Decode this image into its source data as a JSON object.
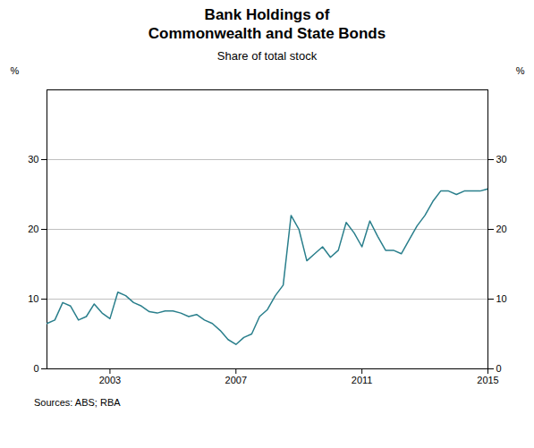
{
  "chart_data": {
    "type": "line",
    "title": "Bank Holdings of\nCommonwealth and State Bonds",
    "subtitle": "Share of total stock",
    "ylabel": "%",
    "y2label": "%",
    "source": "Sources:  ABS; RBA",
    "color": "#2a7f8c",
    "grid": true,
    "xlim": [
      2001,
      2015
    ],
    "xticks": [
      2003,
      2007,
      2011,
      2015
    ],
    "ylim": [
      0,
      40
    ],
    "yticks": [
      0,
      10,
      20,
      30
    ],
    "y2lim": [
      0,
      40
    ],
    "y2ticks": [
      0,
      10,
      20,
      30
    ],
    "x": [
      2001.0,
      2001.25,
      2001.5,
      2001.75,
      2002.0,
      2002.25,
      2002.5,
      2002.75,
      2003.0,
      2003.25,
      2003.5,
      2003.75,
      2004.0,
      2004.25,
      2004.5,
      2004.75,
      2005.0,
      2005.25,
      2005.5,
      2005.75,
      2006.0,
      2006.25,
      2006.5,
      2006.75,
      2007.0,
      2007.25,
      2007.5,
      2007.75,
      2008.0,
      2008.25,
      2008.5,
      2008.75,
      2009.0,
      2009.25,
      2009.5,
      2009.75,
      2010.0,
      2010.25,
      2010.5,
      2010.75,
      2011.0,
      2011.25,
      2011.5,
      2011.75,
      2012.0,
      2012.25,
      2012.5,
      2012.75,
      2013.0,
      2013.25,
      2013.5,
      2013.75,
      2014.0,
      2014.25,
      2014.5,
      2014.75,
      2015.0
    ],
    "values": [
      6.5,
      7.0,
      9.5,
      9.0,
      7.0,
      7.5,
      9.3,
      8.0,
      7.2,
      11.0,
      10.5,
      9.5,
      9.0,
      8.2,
      8.0,
      8.3,
      8.3,
      8.0,
      7.5,
      7.8,
      7.0,
      6.5,
      5.5,
      4.2,
      3.5,
      4.5,
      5.0,
      7.5,
      8.5,
      10.5,
      12.0,
      22.0,
      20.0,
      15.5,
      16.5,
      17.5,
      16.0,
      17.0,
      21.0,
      19.5,
      17.5,
      21.2,
      19.0,
      17.0,
      17.0,
      16.5,
      18.5,
      20.5,
      22.0,
      24.0,
      25.5,
      25.5,
      25.0,
      25.5,
      25.5,
      25.5,
      25.8
    ]
  }
}
